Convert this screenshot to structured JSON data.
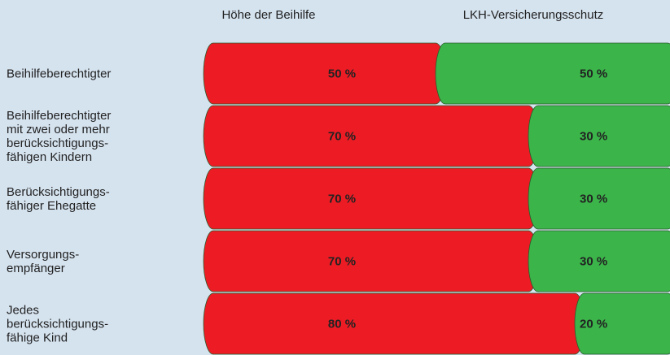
{
  "chart_data": {
    "type": "stacked-bar-horizontal",
    "categories": [
      "Beihilfeberechtigter",
      "Beihilfeberechtigter\nmit zwei oder mehr\nberücksichtigungs-\nfähigen Kindern",
      "Berücksichtigungs-\nfähiger Ehegatte",
      "Versorgungs-\nempfänger",
      "Jedes\nberücksichtigungs-\nfähige Kind"
    ],
    "series": [
      {
        "name": "Höhe der Beihilfe",
        "color": "#ed1c24",
        "values": [
          50,
          70,
          70,
          70,
          80
        ],
        "value_labels": [
          "50 %",
          "70 %",
          "70 %",
          "70 %",
          "80 %"
        ]
      },
      {
        "name": "LKH-Versicherungsschutz",
        "color": "#3bb54a",
        "values": [
          50,
          30,
          30,
          30,
          20
        ],
        "value_labels": [
          "50 %",
          "30 %",
          "30 %",
          "30 %",
          "20 %"
        ]
      }
    ],
    "xlim": [
      0,
      100
    ]
  }
}
